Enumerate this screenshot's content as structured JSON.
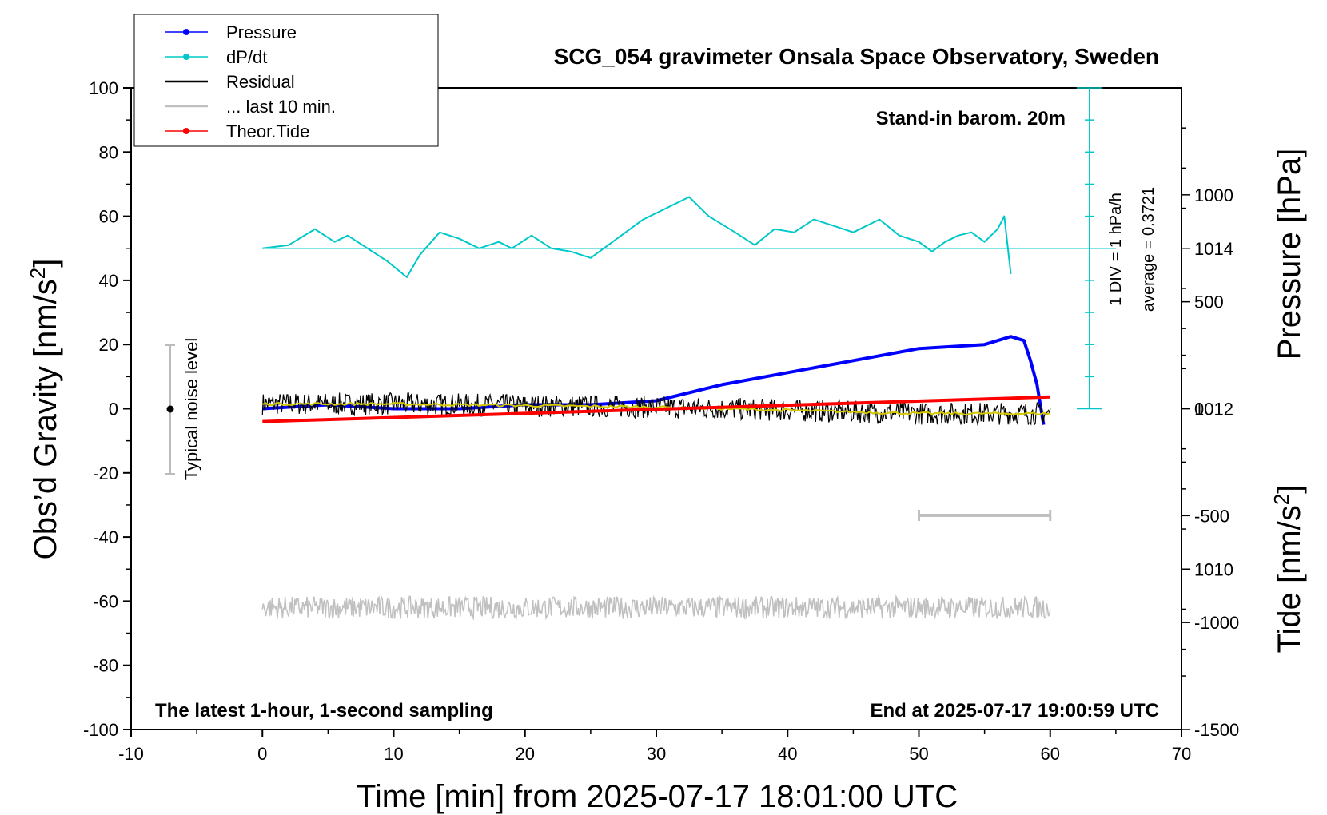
{
  "title": "SCG_054 gravimeter Onsala Space Observatory, Sweden",
  "corner_notes": {
    "barometer": "Stand-in barom. 20m",
    "bottom_left": "The latest 1-hour, 1-second sampling",
    "bottom_right": "End at 2025-07-17 19:00:59 UTC"
  },
  "axes": {
    "x_label": "Time [min] from 2025-07-17 18:01:00 UTC",
    "x_ticks": [
      "-10",
      "0",
      "10",
      "20",
      "30",
      "40",
      "50",
      "60",
      "70"
    ],
    "y_left_label_main": "Obs’d Gravity [nm/s",
    "y_left_label_sup": "2",
    "y_left_label_end": "]",
    "y_left_ticks": [
      "100",
      "80",
      "60",
      "40",
      "20",
      "0",
      "-20",
      "-40",
      "-60",
      "-80",
      "-100"
    ],
    "y_right_pressure_label": "Pressure [hPa]",
    "y_right_pressure_ticks": [
      "1014",
      "1012",
      "1010"
    ],
    "y_right_tide_label_main": "Tide [nm/s",
    "y_right_tide_label_sup": "2",
    "y_right_tide_label_end": "]",
    "y_right_tide_ticks": [
      "1000",
      "500",
      "0",
      "-500",
      "-1000",
      "-1500"
    ]
  },
  "annotations": {
    "noise_label": "Typical noise level",
    "div_label": "1 DIV = 1 hPa/h",
    "average_label": "average = 0.3721"
  },
  "legend": [
    {
      "label": "Pressure",
      "color": "#0000ff",
      "marker": true
    },
    {
      "label": "dP/dt",
      "color": "#00c8c8",
      "marker": true
    },
    {
      "label": "Residual",
      "color": "#000000",
      "marker": false
    },
    {
      "label": "... last 10 min.",
      "color": "#c0c0c0",
      "marker": false
    },
    {
      "label": "Theor.Tide",
      "color": "#ff0000",
      "marker": true
    }
  ],
  "chart_data": {
    "type": "line",
    "xlim": [
      -10,
      70
    ],
    "ylim_gravity": [
      -100,
      100
    ],
    "ylim_pressure_hPa": [
      1008,
      1016
    ],
    "ylim_tide": [
      -1500,
      1500
    ],
    "series": [
      {
        "name": "Pressure",
        "color": "#0000ff",
        "axis": "pressure",
        "x": [
          0,
          5,
          10,
          15,
          20,
          25,
          30,
          35,
          40,
          45,
          50,
          55,
          57,
          58,
          58.5,
          59,
          59.5
        ],
        "y": [
          1012.0,
          1012.05,
          1012.0,
          1012.0,
          1012.05,
          1012.05,
          1012.1,
          1012.3,
          1012.45,
          1012.6,
          1012.75,
          1012.8,
          1012.9,
          1012.85,
          1012.6,
          1012.3,
          1011.8
        ]
      },
      {
        "name": "dP/dt",
        "color": "#00c8c8",
        "axis": "gravity",
        "x": [
          0,
          2,
          4,
          5.5,
          6.5,
          8,
          9.5,
          11,
          12,
          13.5,
          15,
          16.5,
          18,
          19,
          20.5,
          22,
          23.5,
          25,
          27,
          29,
          31,
          32.5,
          34,
          36,
          37.5,
          39,
          40.5,
          42,
          43.5,
          45,
          47,
          48.5,
          50,
          51,
          52,
          53,
          54,
          55,
          56,
          56.5,
          57
        ],
        "y": [
          50,
          51,
          56,
          52,
          54,
          50,
          46,
          41,
          48,
          55,
          53,
          50,
          52,
          50,
          54,
          50,
          49,
          47,
          53,
          59,
          63,
          66,
          60,
          55,
          51,
          56,
          55,
          59,
          57,
          55,
          59,
          54,
          52,
          49,
          52,
          54,
          55,
          52,
          56,
          60,
          42
        ]
      },
      {
        "name": "Residual",
        "color": "#000000",
        "axis": "gravity",
        "x": [
          0,
          10,
          20,
          30,
          40,
          50,
          60
        ],
        "y": [
          1.5,
          1.5,
          1.0,
          0.5,
          -0.5,
          -1.5,
          -1.5
        ],
        "noise_amplitude": 3.5
      },
      {
        "name": "Theor.Tide",
        "color": "#ff0000",
        "axis": "tide",
        "x": [
          0,
          60
        ],
        "y": [
          -60,
          55
        ]
      },
      {
        "name": "... last 10 min.",
        "color": "#c0c0c0",
        "axis": "gravity",
        "x": [
          0,
          60
        ],
        "y": [
          -62,
          -62
        ],
        "noise_amplitude": 3.5
      }
    ],
    "last10min_bracket_x": [
      50,
      60
    ],
    "noise_bar": {
      "x": -7,
      "y_range": [
        -20,
        20
      ],
      "y_center": 0
    }
  }
}
